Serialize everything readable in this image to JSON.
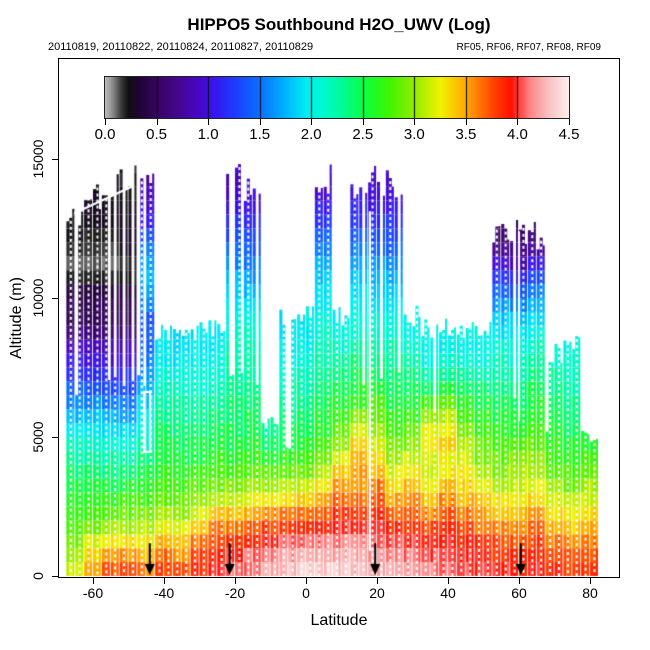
{
  "chart_data": {
    "type": "heatmap",
    "title": "HIPPO5 Southbound H2O_UWV (Log)",
    "subtitle_left": "20110819, 20110822, 20110824, 20110827, 20110829",
    "subtitle_right": "RF05, RF06, RF07, RF08, RF09",
    "xlabel": "Latitude",
    "ylabel": "Altitude (m)",
    "x_ticks": [
      -60,
      -40,
      -20,
      0,
      20,
      40,
      60,
      80
    ],
    "y_ticks": [
      0,
      5000,
      10000,
      15000
    ],
    "xlim": [
      -69.9,
      88.2
    ],
    "ylim": [
      0,
      18600
    ],
    "grid_on": false,
    "legend_position": "top-inside",
    "colorbar": {
      "min": 0.0,
      "max": 4.5,
      "tick_labels": [
        "0.0",
        "0.5",
        "1.0",
        "1.5",
        "2.0",
        "2.5",
        "3.0",
        "3.5",
        "4.0",
        "4.5"
      ],
      "stops": [
        [
          0.0,
          "#b9b9b9"
        ],
        [
          0.05,
          "#9a9a9a"
        ],
        [
          0.1,
          "#6e6e6e"
        ],
        [
          0.15,
          "#3c3c3c"
        ],
        [
          0.22,
          "#101010"
        ],
        [
          0.32,
          "#200433"
        ],
        [
          0.5,
          "#37055f"
        ],
        [
          0.7,
          "#45068f"
        ],
        [
          0.9,
          "#4607c4"
        ],
        [
          1.05,
          "#3a14ee"
        ],
        [
          1.25,
          "#1e3bff"
        ],
        [
          1.5,
          "#0a70ff"
        ],
        [
          1.75,
          "#00b6ff"
        ],
        [
          1.95,
          "#00ecf2"
        ],
        [
          2.1,
          "#00f8d2"
        ],
        [
          2.3,
          "#00fb96"
        ],
        [
          2.5,
          "#0bff45"
        ],
        [
          2.75,
          "#3df500"
        ],
        [
          3.0,
          "#93ec00"
        ],
        [
          3.25,
          "#f2f200"
        ],
        [
          3.5,
          "#ffa600"
        ],
        [
          3.75,
          "#ff4700"
        ],
        [
          3.93,
          "#ff0f00"
        ],
        [
          4.02,
          "#ff4545"
        ],
        [
          4.12,
          "#ff8686"
        ],
        [
          4.22,
          "#f8a9a9"
        ],
        [
          4.32,
          "#f9c7c7"
        ],
        [
          4.42,
          "#fbdddd"
        ],
        [
          4.5,
          "#fdf0f0"
        ]
      ]
    },
    "arrows_lat": [
      -44,
      -21.5,
      19.5,
      60.5
    ],
    "grid": {
      "lat_bin_deg": 5,
      "alt_bin_m": 1000,
      "value_units": "log10 H2O (UWV)",
      "columns": [
        {
          "lat": -65,
          "top_m": 12800,
          "values": [
            3.25,
            3.0,
            2.75,
            2.6,
            2.35,
            2.1,
            1.7,
            1.3,
            1.0,
            0.5,
            0.45,
            0.12,
            0.22
          ]
        },
        {
          "lat": -60,
          "top_m": 13600,
          "values": [
            3.6,
            3.3,
            2.8,
            2.6,
            2.35,
            2.05,
            1.7,
            1.25,
            0.95,
            0.5,
            0.45,
            0.1,
            0.15,
            0.28
          ]
        },
        {
          "lat": -55,
          "top_m": 14200,
          "values": [
            3.8,
            3.4,
            2.9,
            2.6,
            2.3,
            2.0,
            1.65,
            1.2,
            0.9,
            0.5,
            0.45,
            0.08,
            0.18,
            0.28,
            0.22
          ]
        },
        {
          "lat": -50,
          "top_m": 14200,
          "values": [
            3.85,
            3.45,
            2.95,
            2.65,
            2.3,
            2.0,
            1.6,
            1.2,
            0.9,
            0.5,
            0.4,
            0.12,
            0.3,
            0.25,
            0.2
          ]
        },
        {
          "lat": -45,
          "top_m": 14200,
          "values": [
            3.7,
            3.35,
            3.0,
            2.7,
            2.45,
            2.15,
            1.9,
            1.7,
            1.5,
            1.3,
            1.6,
            1.8,
            1.4,
            1.0,
            0.8
          ]
        },
        {
          "lat": -40,
          "top_m": 8850,
          "values": [
            3.85,
            3.6,
            3.1,
            2.8,
            2.6,
            2.45,
            2.3,
            2.15,
            1.95
          ]
        },
        {
          "lat": -35,
          "top_m": 8850,
          "values": [
            3.8,
            3.5,
            3.1,
            2.8,
            2.55,
            2.4,
            2.3,
            2.1,
            1.9
          ]
        },
        {
          "lat": -30,
          "top_m": 8850,
          "values": [
            3.9,
            3.75,
            3.3,
            2.9,
            2.6,
            2.45,
            2.3,
            2.1,
            1.95
          ]
        },
        {
          "lat": -25,
          "top_m": 8850,
          "values": [
            4.0,
            3.85,
            3.5,
            3.0,
            2.7,
            2.5,
            2.35,
            2.15,
            1.95
          ]
        },
        {
          "lat": -20,
          "top_m": 14200,
          "values": [
            4.1,
            3.95,
            3.5,
            3.0,
            2.7,
            2.5,
            2.4,
            2.3,
            2.2,
            2.1,
            1.9,
            1.7,
            1.4,
            1.1,
            0.9
          ]
        },
        {
          "lat": -15,
          "top_m": 14100,
          "values": [
            4.15,
            4.0,
            3.6,
            3.1,
            2.75,
            2.5,
            2.4,
            2.3,
            2.2,
            2.1,
            1.85,
            1.6,
            1.35,
            1.05,
            0.9
          ]
        },
        {
          "lat": -10,
          "top_m": 5500,
          "values": [
            4.25,
            4.1,
            3.7,
            3.15,
            2.7,
            2.3
          ]
        },
        {
          "lat": -5,
          "top_m": 9400,
          "values": [
            4.3,
            4.15,
            3.75,
            3.2,
            2.75,
            2.45,
            2.3,
            2.15,
            2.0,
            1.9
          ]
        },
        {
          "lat": 0,
          "top_m": 9400,
          "values": [
            4.4,
            4.2,
            3.75,
            3.25,
            2.8,
            2.5,
            2.35,
            2.2,
            2.05,
            1.95
          ]
        },
        {
          "lat": 5,
          "top_m": 14200,
          "values": [
            4.4,
            4.2,
            3.8,
            3.4,
            3.0,
            2.7,
            2.5,
            2.35,
            2.2,
            2.1,
            1.95,
            1.75,
            1.5,
            1.15,
            0.9
          ]
        },
        {
          "lat": 10,
          "top_m": 9400,
          "values": [
            4.35,
            4.2,
            3.9,
            3.6,
            3.3,
            2.9,
            2.6,
            2.4,
            2.2,
            2.0
          ]
        },
        {
          "lat": 15,
          "top_m": 14200,
          "values": [
            4.3,
            4.2,
            3.9,
            3.6,
            3.5,
            3.3,
            2.8,
            2.5,
            2.3,
            2.1,
            1.95,
            1.75,
            1.5,
            1.15,
            0.95
          ]
        },
        {
          "lat": 20,
          "top_m": 14200,
          "values": [
            4.3,
            4.15,
            3.9,
            3.7,
            3.4,
            3.1,
            2.8,
            2.5,
            2.3,
            2.1,
            1.9,
            1.7,
            1.45,
            1.1,
            0.9
          ]
        },
        {
          "lat": 25,
          "top_m": 14200,
          "values": [
            4.25,
            4.1,
            3.8,
            3.4,
            3.1,
            2.85,
            2.6,
            2.4,
            2.25,
            2.1,
            1.9,
            1.65,
            1.4,
            1.1,
            0.9
          ]
        },
        {
          "lat": 30,
          "top_m": 9400,
          "values": [
            4.2,
            4.05,
            3.8,
            3.5,
            3.2,
            2.9,
            2.6,
            2.4,
            2.2,
            2.0
          ]
        },
        {
          "lat": 35,
          "top_m": 8850,
          "values": [
            4.15,
            4.0,
            3.7,
            3.3,
            3.1,
            3.3,
            2.9,
            2.3,
            2.0
          ]
        },
        {
          "lat": 40,
          "top_m": 9000,
          "values": [
            4.1,
            4.0,
            3.8,
            3.5,
            3.2,
            3.4,
            3.0,
            2.4,
            2.0
          ]
        },
        {
          "lat": 45,
          "top_m": 8850,
          "values": [
            4.05,
            3.95,
            3.7,
            3.4,
            3.2,
            3.0,
            2.7,
            2.35,
            2.0
          ]
        },
        {
          "lat": 50,
          "top_m": 9000,
          "values": [
            4.0,
            3.9,
            3.6,
            3.3,
            3.0,
            2.8,
            2.55,
            2.3,
            2.0
          ]
        },
        {
          "lat": 55,
          "top_m": 12500,
          "values": [
            4.0,
            3.8,
            3.5,
            3.2,
            2.9,
            2.7,
            2.5,
            2.3,
            2.1,
            1.9,
            1.6,
            1.1,
            0.55
          ]
        },
        {
          "lat": 60,
          "top_m": 12500,
          "values": [
            3.95,
            3.8,
            3.5,
            3.2,
            3.0,
            2.7,
            2.5,
            2.3,
            2.1,
            1.9,
            1.5,
            1.0,
            0.5
          ]
        },
        {
          "lat": 65,
          "top_m": 12300,
          "values": [
            4.0,
            3.85,
            3.6,
            3.3,
            3.0,
            2.8,
            2.6,
            2.4,
            2.2,
            2.0,
            1.7,
            1.2,
            0.6
          ]
        },
        {
          "lat": 70,
          "top_m": 8000,
          "values": [
            3.9,
            3.7,
            3.4,
            3.1,
            2.8,
            2.6,
            2.45,
            2.3,
            2.1
          ]
        },
        {
          "lat": 75,
          "top_m": 8300,
          "values": [
            3.85,
            3.65,
            3.3,
            3.0,
            2.7,
            2.5,
            2.35,
            2.2,
            2.05
          ]
        },
        {
          "lat": 80,
          "top_m": 5000,
          "values": [
            3.9,
            3.7,
            3.45,
            3.1,
            2.8,
            2.5
          ]
        }
      ]
    },
    "track_features": {
      "tropopause_line": {
        "from": {
          "lat": -65.1,
          "alt_m": 13060
        },
        "to": {
          "lat": -48.7,
          "alt_m": 14030
        }
      },
      "loop_rect": {
        "lat0": -45.6,
        "lat1": -43.9,
        "alt0_m": 4460,
        "alt1_m": 6620
      },
      "vertical_lines": [
        {
          "lat": 18.0,
          "alt0_m": 935,
          "alt1_m": 13090
        },
        {
          "lat": 60.0,
          "alt0_m": 5610,
          "alt1_m": 12370
        }
      ]
    }
  }
}
